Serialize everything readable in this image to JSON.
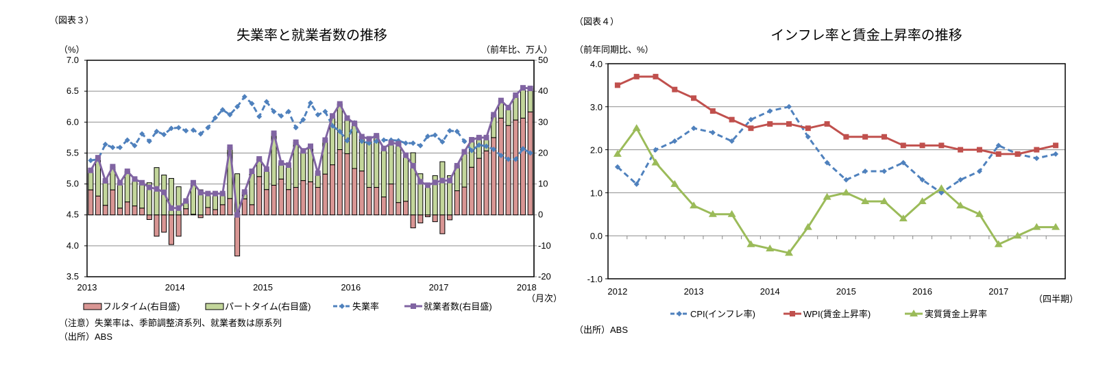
{
  "left": {
    "figure_no": "（図表３）",
    "title": "失業率と就業者数の推移",
    "left_unit": "（%）",
    "right_unit": "（前年比、万人）",
    "x_unit": "（月次）",
    "note": "（注意）失業率は、季節調整済系列、就業者数は原系列",
    "source": "（出所）ABS"
  },
  "right": {
    "figure_no": "（図表４）",
    "title": "インフレ率と賃金上昇率の推移",
    "left_unit": "（前年同期比、%）",
    "x_unit": "（四半期）",
    "source": "（出所）ABS"
  },
  "chart_data": [
    {
      "type": "bar+line",
      "title": "失業率と就業者数の推移",
      "frequency": "monthly",
      "x_tick_labels": [
        "2013",
        "2014",
        "2015",
        "2016",
        "2017",
        "2018"
      ],
      "y_left": {
        "label": "（%）",
        "range": [
          3.5,
          7.0
        ],
        "ticks": [
          "3.5",
          "4.0",
          "4.5",
          "5.0",
          "5.5",
          "6.0",
          "6.5",
          "7.0"
        ]
      },
      "y_right": {
        "label": "（前年比、万人）",
        "range": [
          -20,
          50
        ],
        "ticks": [
          "-20",
          "-10",
          "0",
          "10",
          "20",
          "30",
          "40",
          "50"
        ]
      },
      "grid": true,
      "legend_position": "bottom",
      "colors": {
        "fulltime": "#d99694",
        "parttime": "#c3d69b",
        "unemployment": "#4f81bd",
        "employment": "#8064a2"
      },
      "series": [
        {
          "name": "フルタイム(右目盛)",
          "kind": "stacked-bar",
          "axis": "right",
          "values": [
            8.1,
            6.1,
            3.1,
            8.1,
            2.2,
            4.2,
            2.9,
            2.2,
            -1.5,
            -6.9,
            -5.6,
            -9.6,
            -6.9,
            2.0,
            0.2,
            -0.9,
            2.4,
            1.7,
            3.3,
            5.3,
            -13.3,
            5.2,
            3.3,
            12.4,
            8.2,
            9.6,
            11.6,
            8.2,
            8.9,
            11.1,
            10.7,
            8.9,
            13.2,
            16.2,
            21.1,
            19.8,
            15.0,
            14.2,
            8.9,
            8.9,
            5.8,
            10.0,
            4.0,
            4.4,
            -4.2,
            -2.6,
            -0.6,
            -2.2,
            -6.1,
            -1.6,
            7.8,
            9.0,
            15.4,
            18.3,
            20.7,
            25.0,
            31.3,
            28.9,
            30.7,
            31.3,
            33.3
          ]
        },
        {
          "name": "パートタイム(右目盛)",
          "kind": "stacked-bar",
          "axis": "right",
          "values": [
            6.3,
            12.4,
            7.9,
            7.5,
            8.2,
            9.9,
            8.7,
            8.2,
            10.4,
            15.3,
            12.9,
            11.8,
            9.1,
            2.5,
            10.2,
            8.1,
            4.5,
            5.2,
            3.6,
            16.6,
            13.3,
            2.2,
            10.8,
            5.7,
            6.6,
            16.8,
            5.2,
            7.9,
            14.6,
            9.6,
            11.5,
            4.6,
            11.0,
            15.8,
            14.8,
            11.5,
            14.6,
            11.1,
            15.7,
            16.7,
            15.7,
            13.3,
            19.0,
            14.9,
            20.1,
            13.3,
            10.2,
            12.7,
            17.2,
            12.7,
            8.1,
            11.4,
            8.9,
            6.7,
            4.3,
            7.4,
            5.7,
            5.8,
            8.0,
            9.8,
            7.6
          ]
        },
        {
          "name": "失業率",
          "kind": "line-dashed-diamond",
          "axis": "left",
          "values": [
            5.38,
            5.4,
            5.64,
            5.59,
            5.59,
            5.71,
            5.62,
            5.81,
            5.69,
            5.85,
            5.8,
            5.9,
            5.91,
            5.86,
            5.87,
            5.81,
            5.91,
            6.07,
            6.2,
            6.12,
            6.25,
            6.41,
            6.3,
            6.09,
            6.33,
            6.17,
            6.1,
            6.17,
            5.91,
            6.04,
            6.31,
            6.12,
            6.17,
            5.94,
            5.85,
            5.7,
            5.99,
            5.69,
            5.66,
            5.69,
            5.71,
            5.71,
            5.7,
            5.66,
            5.66,
            5.62,
            5.77,
            5.79,
            5.68,
            5.86,
            5.85,
            5.69,
            5.54,
            5.63,
            5.61,
            5.56,
            5.46,
            5.4,
            5.4,
            5.57,
            5.5
          ]
        },
        {
          "name": "就業者数(右目盛)",
          "kind": "line-square",
          "axis": "right",
          "values": [
            14.4,
            18.5,
            11.0,
            15.6,
            10.4,
            14.1,
            11.6,
            10.4,
            8.9,
            8.4,
            7.3,
            2.2,
            2.2,
            4.5,
            10.4,
            7.2,
            6.9,
            6.9,
            6.9,
            21.9,
            0.0,
            7.4,
            14.1,
            18.1,
            14.8,
            26.4,
            16.8,
            16.1,
            23.5,
            20.7,
            22.2,
            13.5,
            24.2,
            32.0,
            35.9,
            31.3,
            29.6,
            25.3,
            24.6,
            25.6,
            21.5,
            23.3,
            23.0,
            19.3,
            15.9,
            10.7,
            9.6,
            10.5,
            11.1,
            11.1,
            15.9,
            20.4,
            24.3,
            25.0,
            25.0,
            32.4,
            37.0,
            34.7,
            38.7,
            41.1,
            40.9
          ]
        }
      ]
    },
    {
      "type": "line",
      "title": "インフレ率と賃金上昇率の推移",
      "frequency": "quarterly",
      "x_tick_labels": [
        "2012",
        "2013",
        "2014",
        "2015",
        "2016",
        "2017"
      ],
      "y": {
        "label": "（前年同期比、%）",
        "range": [
          -1.0,
          4.0
        ],
        "ticks": [
          "-1.0",
          "0.0",
          "1.0",
          "2.0",
          "3.0",
          "4.0"
        ]
      },
      "grid": true,
      "legend_position": "bottom",
      "colors": {
        "cpi": "#4f81bd",
        "wpi": "#c0504d",
        "real": "#9bbb59"
      },
      "series": [
        {
          "name": "CPI(インフレ率)",
          "kind": "line-dashed-diamond",
          "values": [
            1.6,
            1.2,
            2.0,
            2.2,
            2.5,
            2.4,
            2.2,
            2.7,
            2.9,
            3.0,
            2.3,
            1.7,
            1.3,
            1.5,
            1.5,
            1.7,
            1.3,
            1.0,
            1.3,
            1.5,
            2.1,
            1.9,
            1.8,
            1.9
          ]
        },
        {
          "name": "WPI(賃金上昇率)",
          "kind": "line-square",
          "values": [
            3.5,
            3.7,
            3.7,
            3.4,
            3.2,
            2.9,
            2.7,
            2.5,
            2.6,
            2.6,
            2.5,
            2.6,
            2.3,
            2.3,
            2.3,
            2.1,
            2.1,
            2.1,
            2.0,
            2.0,
            1.9,
            1.9,
            2.0,
            2.1
          ]
        },
        {
          "name": "実質賃金上昇率",
          "kind": "line-triangle",
          "values": [
            1.9,
            2.5,
            1.7,
            1.2,
            0.7,
            0.5,
            0.5,
            -0.2,
            -0.3,
            -0.4,
            0.2,
            0.9,
            1.0,
            0.8,
            0.8,
            0.4,
            0.8,
            1.1,
            0.7,
            0.5,
            -0.2,
            0.0,
            0.2,
            0.2
          ]
        }
      ]
    }
  ]
}
